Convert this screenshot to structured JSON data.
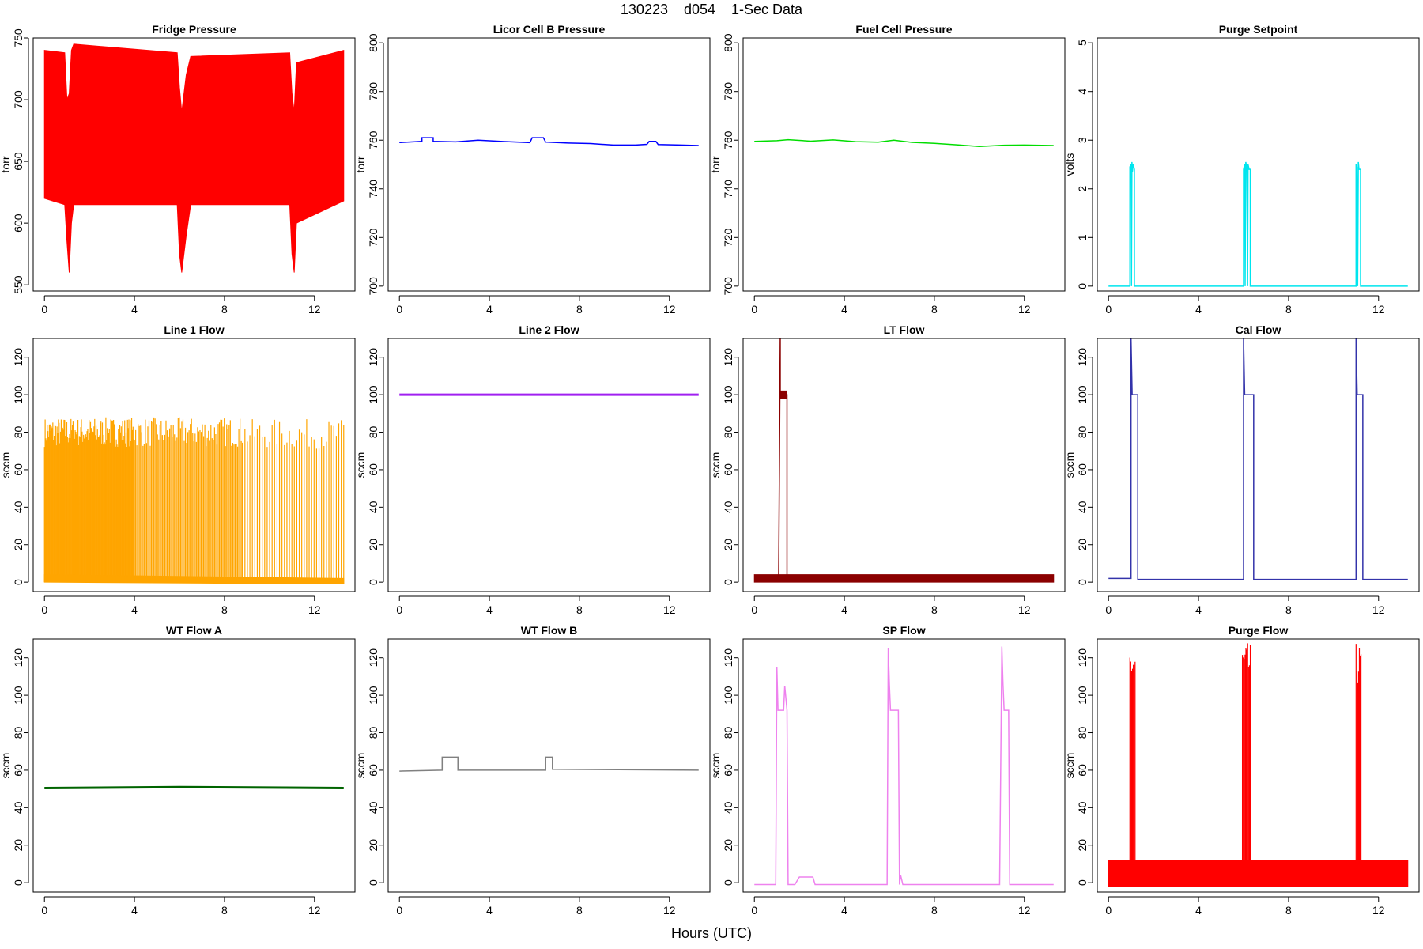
{
  "figure": {
    "title": "130223    d054    1-Sec Data",
    "xlabel": "Hours (UTC)"
  },
  "chart_data": [
    {
      "type": "line",
      "title": "Fridge Pressure",
      "ylabel": "torr",
      "color": "#ff0000",
      "xlim": [
        -0.5,
        13.8
      ],
      "ylim": [
        545,
        750
      ],
      "xticks": [
        0,
        4,
        8,
        12
      ],
      "yticks": [
        550,
        600,
        650,
        700,
        750
      ],
      "series": [
        {
          "style": "band",
          "x": [
            0,
            0.9,
            1.0,
            1.1,
            1.2,
            1.3,
            5.9,
            6.0,
            6.1,
            6.3,
            6.5,
            10.9,
            11.0,
            11.1,
            11.2,
            13.3
          ],
          "low": [
            620,
            615,
            585,
            560,
            600,
            615,
            615,
            575,
            560,
            590,
            615,
            615,
            575,
            560,
            600,
            618
          ],
          "high": [
            740,
            738,
            700,
            705,
            740,
            745,
            738,
            710,
            690,
            720,
            735,
            738,
            705,
            690,
            730,
            740
          ]
        }
      ]
    },
    {
      "type": "line",
      "title": "Licor Cell B Pressure",
      "ylabel": "torr",
      "color": "#0000ff",
      "xlim": [
        -0.5,
        13.8
      ],
      "ylim": [
        698,
        802
      ],
      "xticks": [
        0,
        4,
        8,
        12
      ],
      "yticks": [
        700,
        720,
        740,
        760,
        780,
        800
      ],
      "series": [
        {
          "x": [
            0,
            1.0,
            1.0,
            1.5,
            1.5,
            2.5,
            3.5,
            4.5,
            5.8,
            5.9,
            6.4,
            6.5,
            7.5,
            8.5,
            9.5,
            10.5,
            11.0,
            11.1,
            11.4,
            11.5,
            12.5,
            13.3
          ],
          "y": [
            759,
            759.5,
            761,
            761,
            759.5,
            759.3,
            760,
            759.5,
            759,
            761,
            761,
            759.2,
            758.8,
            758.6,
            758,
            758,
            758.3,
            759.5,
            759.5,
            758.2,
            758,
            757.8
          ]
        }
      ]
    },
    {
      "type": "line",
      "title": "Fuel Cell Pressure",
      "ylabel": "torr",
      "color": "#00dd00",
      "xlim": [
        -0.5,
        13.8
      ],
      "ylim": [
        698,
        802
      ],
      "xticks": [
        0,
        4,
        8,
        12
      ],
      "yticks": [
        700,
        720,
        740,
        760,
        780,
        800
      ],
      "series": [
        {
          "x": [
            0,
            1,
            1.5,
            2.5,
            3.5,
            4.5,
            5.5,
            6.2,
            7,
            8,
            9,
            10,
            11,
            12,
            13.3
          ],
          "y": [
            759.5,
            759.8,
            760.2,
            759.6,
            760.1,
            759.4,
            759.2,
            760,
            759.1,
            758.7,
            758.1,
            757.4,
            757.9,
            758,
            757.8
          ]
        }
      ]
    },
    {
      "type": "line",
      "title": "Purge Setpoint",
      "ylabel": "volts",
      "color": "#00e5ee",
      "xlim": [
        -0.5,
        13.8
      ],
      "ylim": [
        -0.1,
        5.1
      ],
      "xticks": [
        0,
        4,
        8,
        12
      ],
      "yticks": [
        0,
        1,
        2,
        3,
        4,
        5
      ],
      "series": [
        {
          "x": [
            0,
            0.95,
            0.95,
            1.0,
            1.02,
            1.04,
            1.06,
            1.1,
            1.15,
            1.15,
            6.0,
            6.0,
            6.05,
            6.07,
            6.1,
            6.15,
            6.18,
            6.2,
            6.25,
            6.3,
            6.3,
            11.0,
            11.0,
            11.04,
            11.07,
            11.1,
            11.13,
            11.2,
            11.2,
            13.3
          ],
          "y": [
            0,
            0,
            2.45,
            2.5,
            0,
            2.55,
            2.35,
            2.5,
            2.4,
            0,
            0,
            2.4,
            2.5,
            0,
            2.55,
            2.4,
            0,
            2.5,
            2.4,
            2.4,
            0,
            0,
            2.5,
            2.45,
            0,
            2.55,
            2.4,
            2.4,
            0,
            0
          ]
        }
      ]
    },
    {
      "type": "line",
      "title": "Line 1 Flow",
      "ylabel": "sccm",
      "color": "#ffa500",
      "xlim": [
        -0.5,
        13.8
      ],
      "ylim": [
        -5,
        130
      ],
      "xticks": [
        0,
        4,
        8,
        12
      ],
      "yticks": [
        0,
        20,
        40,
        60,
        80,
        100,
        120
      ],
      "series": [
        {
          "style": "spikes",
          "x_start": 0,
          "x_end": 4,
          "count": 130,
          "base": 0,
          "peak": 88
        },
        {
          "style": "spikes",
          "x_start": 4,
          "x_end": 8.8,
          "count": 90,
          "base": 0,
          "peak": 88
        },
        {
          "style": "spikes",
          "x_start": 8.8,
          "x_end": 13.3,
          "count": 42,
          "base": -1,
          "peak": 87
        },
        {
          "style": "band",
          "x": [
            0,
            13.3
          ],
          "low": [
            0,
            -1
          ],
          "high": [
            4,
            2
          ]
        }
      ]
    },
    {
      "type": "line",
      "title": "Line 2 Flow",
      "ylabel": "sccm",
      "color": "#a020f0",
      "xlim": [
        -0.5,
        13.8
      ],
      "ylim": [
        -5,
        130
      ],
      "xticks": [
        0,
        4,
        8,
        12
      ],
      "yticks": [
        0,
        20,
        40,
        60,
        80,
        100,
        120
      ],
      "series": [
        {
          "x": [
            0,
            13.3
          ],
          "y": [
            100,
            100
          ]
        }
      ]
    },
    {
      "type": "line",
      "title": "LT Flow",
      "ylabel": "sccm",
      "color": "#8b0000",
      "xlim": [
        -0.5,
        13.8
      ],
      "ylim": [
        -5,
        130
      ],
      "xticks": [
        0,
        4,
        8,
        12
      ],
      "yticks": [
        0,
        20,
        40,
        60,
        80,
        100,
        120
      ],
      "series": [
        {
          "style": "band",
          "x": [
            0,
            1.08,
            1.08,
            1.45,
            1.45,
            13.3
          ],
          "low": [
            0,
            0,
            0,
            0,
            0,
            0
          ],
          "high": [
            4,
            4,
            4,
            4,
            4,
            4
          ]
        },
        {
          "x": [
            1.08,
            1.15,
            1.15,
            1.45,
            1.45
          ],
          "y": [
            2,
            130,
            100,
            100,
            2
          ]
        },
        {
          "style": "band",
          "x": [
            1.15,
            1.45
          ],
          "low": [
            98,
            98
          ],
          "high": [
            102,
            102
          ]
        }
      ]
    },
    {
      "type": "line",
      "title": "Cal Flow",
      "ylabel": "sccm",
      "color": "#3333aa",
      "xlim": [
        -0.5,
        13.8
      ],
      "ylim": [
        -5,
        130
      ],
      "xticks": [
        0,
        4,
        8,
        12
      ],
      "yticks": [
        0,
        20,
        40,
        60,
        80,
        100,
        120
      ],
      "series": [
        {
          "x": [
            0,
            1.0,
            1.0,
            1.05,
            1.05,
            1.3,
            1.3,
            6.0,
            6.0,
            6.05,
            6.05,
            6.45,
            6.45,
            11.0,
            11.0,
            11.05,
            11.05,
            11.3,
            11.3,
            13.3
          ],
          "y": [
            2,
            2,
            130,
            100,
            100,
            100,
            1.5,
            1.5,
            130,
            100,
            100,
            100,
            1.5,
            1.5,
            130,
            100,
            100,
            100,
            1.5,
            1.5
          ]
        }
      ]
    },
    {
      "type": "line",
      "title": "WT Flow A",
      "ylabel": "sccm",
      "color": "#006400",
      "xlim": [
        -0.5,
        13.8
      ],
      "ylim": [
        -5,
        130
      ],
      "xticks": [
        0,
        4,
        8,
        12
      ],
      "yticks": [
        0,
        20,
        40,
        60,
        80,
        100,
        120
      ],
      "series": [
        {
          "x": [
            0,
            6,
            13.3
          ],
          "y": [
            50.5,
            51,
            50.5
          ]
        }
      ]
    },
    {
      "type": "line",
      "title": "WT Flow B",
      "ylabel": "sccm",
      "color": "#808080",
      "xlim": [
        -0.5,
        13.8
      ],
      "ylim": [
        -5,
        130
      ],
      "xticks": [
        0,
        4,
        8,
        12
      ],
      "yticks": [
        0,
        20,
        40,
        60,
        80,
        100,
        120
      ],
      "series": [
        {
          "x": [
            0,
            1.9,
            1.9,
            2.6,
            2.6,
            6.5,
            6.5,
            6.8,
            6.8,
            13.3
          ],
          "y": [
            59.5,
            60,
            67,
            67,
            60,
            60,
            67,
            67,
            60.5,
            60
          ]
        }
      ]
    },
    {
      "type": "line",
      "title": "SP Flow",
      "ylabel": "sccm",
      "color": "#ee82ee",
      "xlim": [
        -0.5,
        13.8
      ],
      "ylim": [
        -5,
        130
      ],
      "xticks": [
        0,
        4,
        8,
        12
      ],
      "yticks": [
        0,
        20,
        40,
        60,
        80,
        100,
        120
      ],
      "series": [
        {
          "x": [
            0,
            0.95,
            1.0,
            1.05,
            1.05,
            1.3,
            1.35,
            1.45,
            1.5,
            1.8,
            2.0,
            2.6,
            2.7,
            5.9,
            5.95,
            6.0,
            6.05,
            6.1,
            6.4,
            6.45,
            6.5,
            6.6,
            10.9,
            11.0,
            11.05,
            11.1,
            11.15,
            11.3,
            11.35,
            11.45,
            13.3
          ],
          "y": [
            -1,
            -1,
            115,
            92,
            92,
            92,
            105,
            92,
            -1,
            -1,
            3,
            3,
            -1,
            -1,
            125,
            106,
            92,
            92,
            92,
            -1,
            4,
            -1,
            -1,
            126,
            106,
            92,
            92,
            92,
            -1,
            -1,
            -1
          ]
        }
      ]
    },
    {
      "type": "line",
      "title": "Purge Flow",
      "ylabel": "sccm",
      "color": "#ff0000",
      "xlim": [
        -0.5,
        13.8
      ],
      "ylim": [
        -5,
        130
      ],
      "xticks": [
        0,
        4,
        8,
        12
      ],
      "yticks": [
        0,
        20,
        40,
        60,
        80,
        100,
        120
      ],
      "series": [
        {
          "style": "band",
          "x": [
            0,
            13.3
          ],
          "low": [
            -2,
            -2
          ],
          "high": [
            12,
            12
          ]
        },
        {
          "style": "spikes",
          "x_start": 0.95,
          "x_end": 1.18,
          "count": 7,
          "base": -2,
          "peak": 128
        },
        {
          "style": "spikes",
          "x_start": 5.95,
          "x_end": 6.3,
          "count": 10,
          "base": -2,
          "peak": 128
        },
        {
          "style": "spikes",
          "x_start": 11.0,
          "x_end": 11.22,
          "count": 7,
          "base": -2,
          "peak": 128
        }
      ]
    }
  ]
}
